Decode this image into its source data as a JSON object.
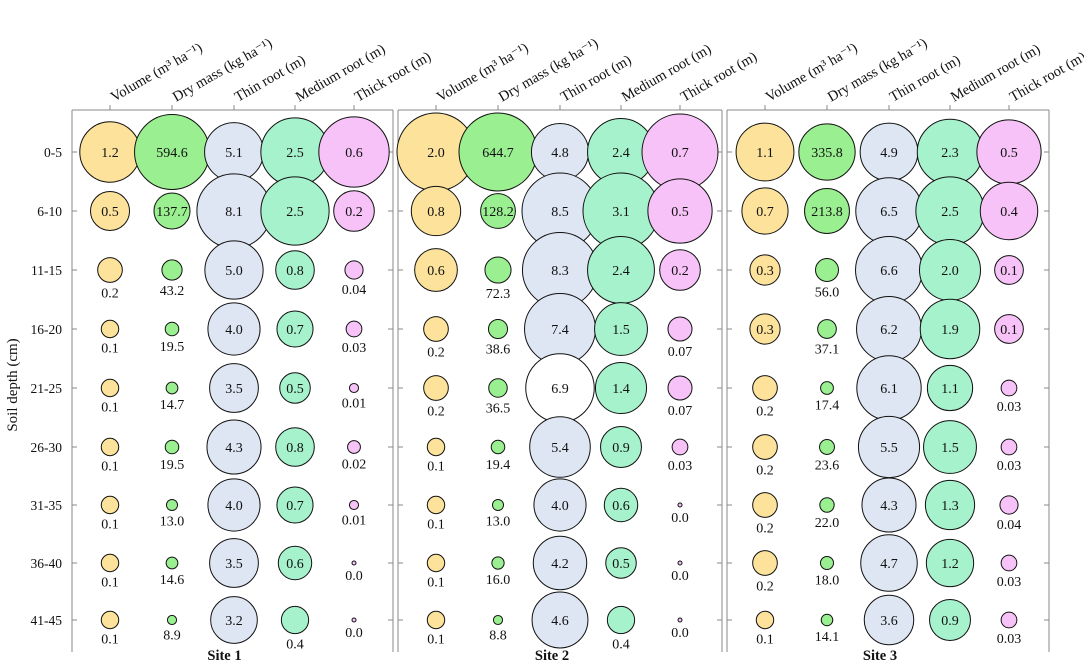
{
  "chart_data": {
    "type": "bubble",
    "ylabel": "Soil depth (cm)",
    "depths": [
      "0-5",
      "6-10",
      "11-15",
      "16-20",
      "21-25",
      "26-30",
      "31-35",
      "36-40",
      "41-45"
    ],
    "columns": [
      {
        "key": "volume",
        "label": "Volume (m³ ha⁻¹)",
        "color": "#fce29a"
      },
      {
        "key": "dry_mass",
        "label": "Dry mass (kg ha⁻¹)",
        "color": "#9af090"
      },
      {
        "key": "thin_root",
        "label": "Thin root (m)",
        "color": "#dde6f2"
      },
      {
        "key": "medium_root",
        "label": "Medium root (m)",
        "color": "#a6f2cc"
      },
      {
        "key": "thick_root",
        "label": "Thick root (m)",
        "color": "#f7c2f7"
      }
    ],
    "sites": [
      {
        "name": "Site 1",
        "series": [
          {
            "key": "volume",
            "values": [
              "1.2",
              "0.5",
              "0.2",
              "0.1",
              "0.1",
              "0.1",
              "0.1",
              "0.1",
              "0.1"
            ]
          },
          {
            "key": "dry_mass",
            "values": [
              "594.6",
              "137.7",
              "43.2",
              "19.5",
              "14.7",
              "19.5",
              "13.0",
              "14.6",
              "8.9"
            ]
          },
          {
            "key": "thin_root",
            "values": [
              "5.1",
              "8.1",
              "5.0",
              "4.0",
              "3.5",
              "4.3",
              "4.0",
              "3.5",
              "3.2"
            ]
          },
          {
            "key": "medium_root",
            "values": [
              "2.5",
              "2.5",
              "0.8",
              "0.7",
              "0.5",
              "0.8",
              "0.7",
              "0.6",
              "0.4"
            ]
          },
          {
            "key": "thick_root",
            "values": [
              "0.6",
              "0.2",
              "0.04",
              "0.03",
              "0.01",
              "0.02",
              "0.01",
              "0.0",
              "0.0"
            ]
          }
        ]
      },
      {
        "name": "Site 2",
        "series": [
          {
            "key": "volume",
            "values": [
              "2.0",
              "0.8",
              "0.6",
              "0.2",
              "0.2",
              "0.1",
              "0.1",
              "0.1",
              "0.1"
            ]
          },
          {
            "key": "dry_mass",
            "values": [
              "644.7",
              "128.2",
              "72.3",
              "38.6",
              "36.5",
              "19.4",
              "13.0",
              "16.0",
              "8.8"
            ]
          },
          {
            "key": "thin_root",
            "values": [
              "4.8",
              "8.5",
              "8.3",
              "7.4",
              "6.9",
              "5.4",
              "4.0",
              "4.2",
              "4.6"
            ]
          },
          {
            "key": "medium_root",
            "values": [
              "2.4",
              "3.1",
              "2.4",
              "1.5",
              "1.4",
              "0.9",
              "0.6",
              "0.5",
              "0.4"
            ]
          },
          {
            "key": "thick_root",
            "values": [
              "0.7",
              "0.5",
              "0.2",
              "0.07",
              "0.07",
              "0.03",
              "0.0",
              "0.0",
              "0.0"
            ]
          }
        ]
      },
      {
        "name": "Site 3",
        "series": [
          {
            "key": "volume",
            "values": [
              "1.1",
              "0.7",
              "0.3",
              "0.3",
              "0.2",
              "0.2",
              "0.2",
              "0.2",
              "0.1"
            ]
          },
          {
            "key": "dry_mass",
            "values": [
              "335.8",
              "213.8",
              "56.0",
              "37.1",
              "17.4",
              "23.6",
              "22.0",
              "18.0",
              "14.1"
            ]
          },
          {
            "key": "thin_root",
            "values": [
              "4.9",
              "6.5",
              "6.6",
              "6.2",
              "6.1",
              "5.5",
              "4.3",
              "4.7",
              "3.6"
            ]
          },
          {
            "key": "medium_root",
            "values": [
              "2.3",
              "2.5",
              "2.0",
              "1.9",
              "1.1",
              "1.5",
              "1.3",
              "1.2",
              "0.9"
            ]
          },
          {
            "key": "thick_root",
            "values": [
              "0.5",
              "0.4",
              "0.1",
              "0.1",
              "0.03",
              "0.03",
              "0.04",
              "0.03",
              "0.03"
            ]
          }
        ]
      }
    ]
  }
}
